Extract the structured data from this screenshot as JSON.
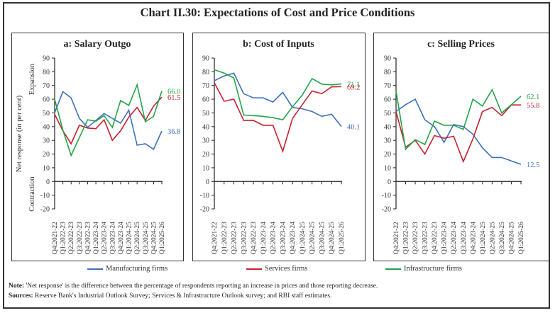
{
  "title": "Chart II.30: Expectations of Cost and Price Conditions",
  "colors": {
    "manufacturing": "#3f6fbd",
    "services": "#c8202e",
    "infrastructure": "#22a548"
  },
  "y_axis_label": "Net response (in per cent)",
  "expansion_label": "Expansion",
  "contraction_label": "Contraction",
  "legend": [
    {
      "key": "manufacturing",
      "label": "Manufacturing firms"
    },
    {
      "key": "services",
      "label": "Services firms"
    },
    {
      "key": "infrastructure",
      "label": "Infrastructure firms"
    }
  ],
  "note_label": "Note:",
  "note_text": " 'Net response' is the difference between the percentage of respondents reporting an increase in prices and those reporting decrease.",
  "sources_label": "Sources:",
  "sources_text": " Reserve Bank's Industrial Outlook Survey; Services & Infrastructure Outlook survey; and RBI staff estimates.",
  "chart_data": [
    {
      "type": "line",
      "title": "a: Salary Outgo",
      "xlabel": "",
      "ylabel": "Net response (in per cent)",
      "ylim": [
        -20,
        90
      ],
      "yticks": [
        -20,
        -10,
        0,
        10,
        20,
        30,
        40,
        50,
        60,
        70,
        80,
        90
      ],
      "categories": [
        "Q4:2021-22",
        "Q1:2022-23",
        "Q2:2022-23",
        "Q3:2022-23",
        "Q4:2022-23",
        "Q1:2023-24",
        "Q2:2023-24",
        "Q3:2023-24",
        "Q4:2023-24",
        "Q1:2024-25",
        "Q2:2024-25",
        "Q3:2024-25",
        "Q4:2024-25",
        "Q1:2025-26"
      ],
      "series": [
        {
          "name": "Manufacturing firms",
          "key": "manufacturing",
          "values": [
            50,
            65.5,
            61,
            46,
            39.5,
            44.5,
            49.5,
            46,
            42.5,
            52,
            26.5,
            27.5,
            23.5,
            36.8
          ],
          "end_label": "36.8"
        },
        {
          "name": "Services firms",
          "key": "services",
          "values": [
            49,
            37,
            27.5,
            41,
            39,
            38.5,
            45,
            30,
            37,
            47,
            54,
            44.5,
            55,
            61.5
          ],
          "end_label": "61.5"
        },
        {
          "name": "Infrastructure firms",
          "key": "infrastructure",
          "values": [
            60,
            37.5,
            19,
            32,
            45,
            44,
            48,
            39.5,
            59,
            55.5,
            70.5,
            43.5,
            47.5,
            66.0
          ],
          "end_label": "66.0"
        }
      ],
      "grid": false
    },
    {
      "type": "line",
      "title": "b: Cost of Inputs",
      "xlabel": "",
      "ylabel": "",
      "ylim": [
        -20,
        90
      ],
      "yticks": [
        -20,
        -10,
        0,
        10,
        20,
        30,
        40,
        50,
        60,
        70,
        80,
        90
      ],
      "categories": [
        "Q4:2021-22",
        "Q1:2022-23",
        "Q2:2022-23",
        "Q3:2022-23",
        "Q4:2022-23",
        "Q1:2023-24",
        "Q2:2023-24",
        "Q3:2023-24",
        "Q4:2023-24",
        "Q1:2024-25",
        "Q2:2024-25",
        "Q3:2024-25",
        "Q4:2024-25",
        "Q1:2025-26"
      ],
      "series": [
        {
          "name": "Manufacturing firms",
          "key": "manufacturing",
          "values": [
            73.5,
            77,
            79,
            64,
            61,
            61,
            58,
            65,
            54,
            53,
            51,
            47.5,
            49,
            40.1
          ],
          "end_label": "40.1"
        },
        {
          "name": "Services firms",
          "key": "services",
          "values": [
            72,
            58.5,
            60,
            44.5,
            44.5,
            41,
            41,
            22,
            46,
            56,
            66,
            64,
            69,
            69.2
          ],
          "end_label": "69.2"
        },
        {
          "name": "Infrastructure firms",
          "key": "infrastructure",
          "values": [
            81.5,
            79,
            75.5,
            48.5,
            48,
            47.5,
            46.5,
            45,
            54.5,
            63,
            75,
            71,
            70.5,
            71.1
          ],
          "end_label": "71.1"
        }
      ],
      "grid": false
    },
    {
      "type": "line",
      "title": "c: Selling Prices",
      "xlabel": "",
      "ylabel": "",
      "ylim": [
        -20,
        90
      ],
      "yticks": [
        -20,
        -10,
        0,
        10,
        20,
        30,
        40,
        50,
        60,
        70,
        80,
        90
      ],
      "categories": [
        "Q4:2021-22",
        "Q1:2022-23",
        "Q2:2022-23",
        "Q3:2022-23",
        "Q4:2022-23",
        "Q1:2023-24",
        "Q2:2023-24",
        "Q3:2023-24",
        "Q4:2023-24",
        "Q1:2024-25",
        "Q2:2024-25",
        "Q3:2024-25",
        "Q4:2024-25",
        "Q1:2025-26"
      ],
      "series": [
        {
          "name": "Manufacturing firms",
          "key": "manufacturing",
          "values": [
            51,
            56,
            60,
            45,
            40,
            28.5,
            41.5,
            40,
            34.5,
            24.5,
            17.5,
            17.5,
            15,
            12.5
          ],
          "end_label": "12.5"
        },
        {
          "name": "Services firms",
          "key": "services",
          "values": [
            51,
            25,
            30,
            20,
            33.5,
            31.5,
            33,
            14.5,
            31,
            51,
            54,
            48,
            55.8,
            55.8
          ],
          "end_label": "55.8"
        },
        {
          "name": "Infrastructure firms",
          "key": "infrastructure",
          "values": [
            66,
            23.5,
            30.5,
            27,
            44,
            41,
            41,
            38,
            60,
            55,
            67,
            50,
            56,
            62.1
          ],
          "end_label": "62.1"
        }
      ],
      "grid": false
    }
  ]
}
